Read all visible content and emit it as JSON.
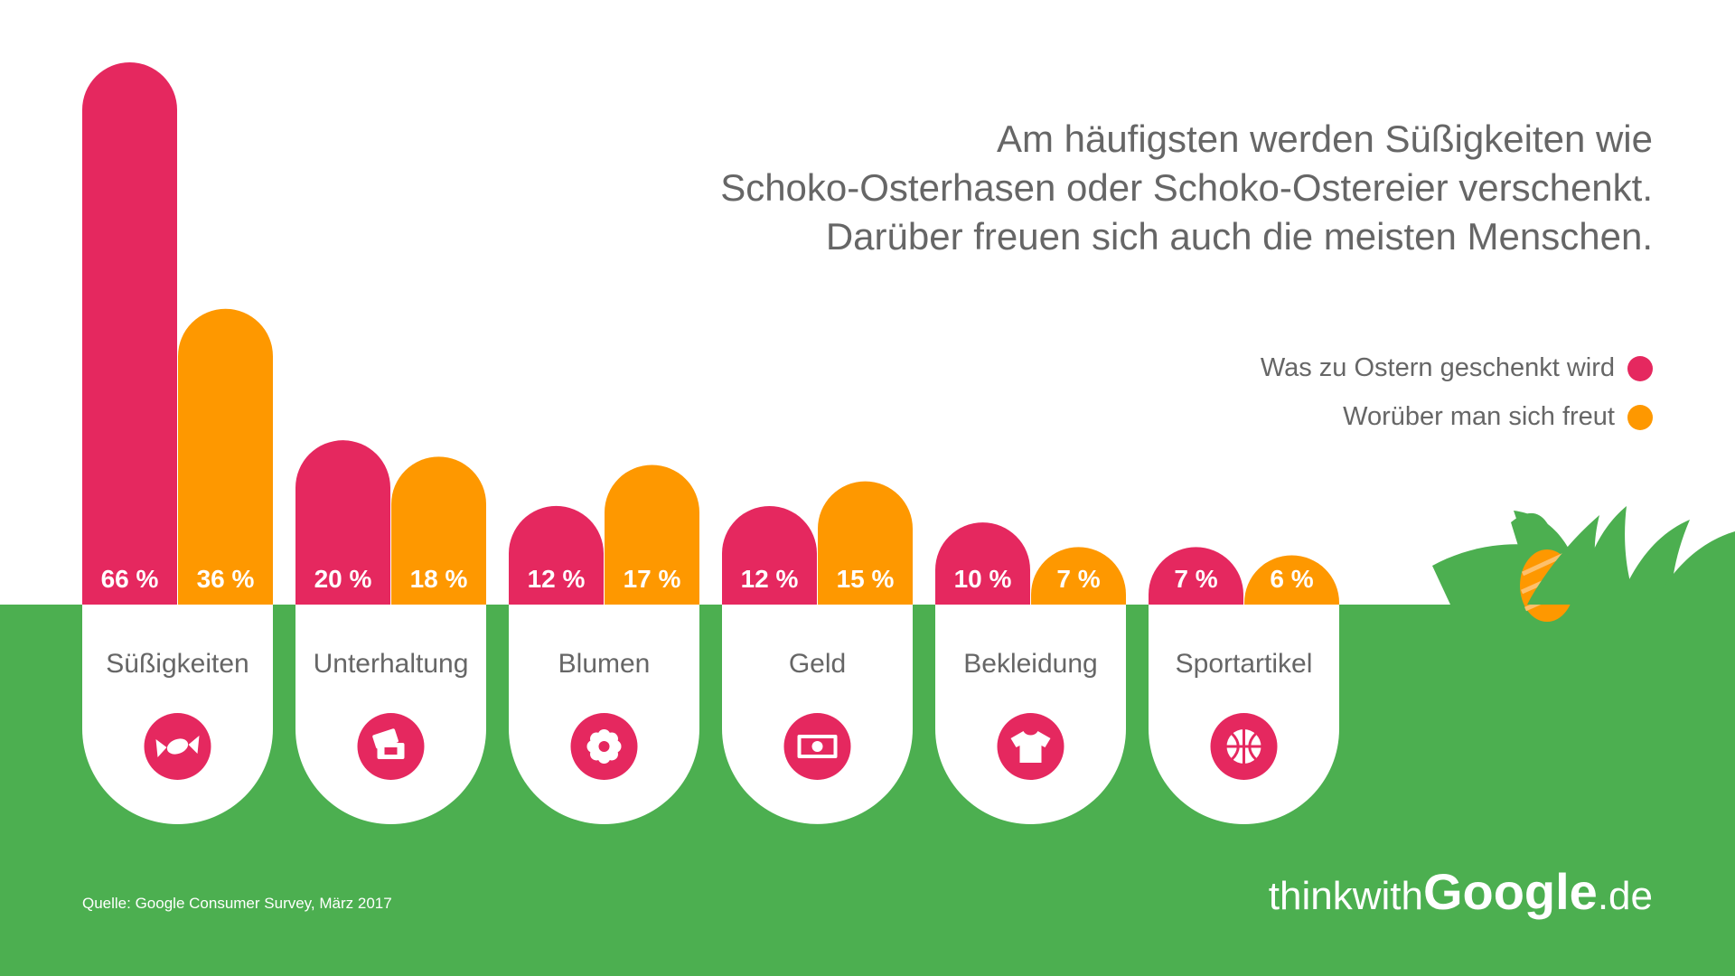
{
  "title_lines": [
    "Am häufigsten werden Süßigkeiten wie",
    "Schoko-Osterhasen oder Schoko-Ostereier verschenkt.",
    "Darüber freuen sich auch die meisten Menschen."
  ],
  "legend": {
    "series1": "Was zu Ostern geschenkt wird",
    "series2": "Worüber man sich freut"
  },
  "colors": {
    "series1": "#e5285f",
    "series2": "#fe9800",
    "grass": "#4caf50",
    "background": "#ffffff",
    "text": "#666666"
  },
  "chart_data": {
    "type": "bar",
    "title": "Am häufigsten werden Süßigkeiten wie Schoko-Osterhasen oder Schoko-Ostereier verschenkt. Darüber freuen sich auch die meisten Menschen.",
    "categories": [
      "Süßigkeiten",
      "Unterhaltung",
      "Blumen",
      "Geld",
      "Bekleidung",
      "Sportartikel"
    ],
    "icons": [
      "candy-icon",
      "tickets-icon",
      "flower-icon",
      "money-icon",
      "tshirt-icon",
      "basketball-icon"
    ],
    "series": [
      {
        "name": "Was zu Ostern geschenkt wird",
        "values": [
          66,
          20,
          12,
          12,
          10,
          7
        ],
        "labels": [
          "66 %",
          "20 %",
          "12 %",
          "12 %",
          "10 %",
          "7 %"
        ]
      },
      {
        "name": "Worüber man sich freut",
        "values": [
          36,
          18,
          17,
          15,
          7,
          6
        ],
        "labels": [
          "36 %",
          "18 %",
          "17 %",
          "15 %",
          "7 %",
          "6 %"
        ]
      }
    ],
    "ylim": [
      0,
      66
    ],
    "grid": false,
    "legend_position": "top-right"
  },
  "source": "Quelle: Google Consumer Survey, März 2017",
  "logo": {
    "prefix": "thinkwith",
    "brand": "Google",
    "suffix": ".de"
  }
}
